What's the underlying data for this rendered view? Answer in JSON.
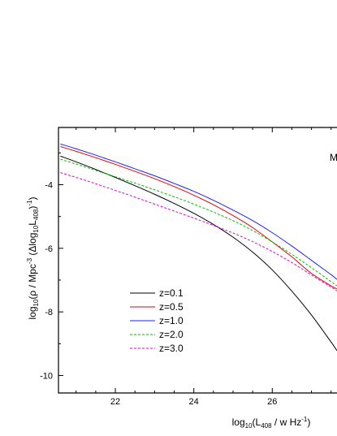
{
  "chart_data": {
    "type": "line",
    "xlabel": {
      "base": "log",
      "sub1": "10",
      "mid": "(L",
      "sub2": "408",
      "tail": " / w Hz",
      "sup": "-1",
      "close": ")"
    },
    "ylabel": {
      "base": "log",
      "sub1": "10",
      "mid1": "(ρ / Mpc",
      "sup1": "-3",
      "mid2": " (Δlog",
      "sub2": "10",
      "mid3": "L",
      "sub3": "408",
      "mid4": ")",
      "sup2": "-1",
      "close": ")"
    },
    "corner_text": "M",
    "xlim": [
      20.55,
      27.65
    ],
    "ylim": [
      -10.55,
      -2.2
    ],
    "xticks": [
      22,
      24,
      26
    ],
    "yticks": [
      -4,
      -6,
      -8,
      -10
    ],
    "grid": false,
    "legend_position": "lower-left",
    "x": [
      20.6,
      21.0,
      21.5,
      22.0,
      22.5,
      23.0,
      23.5,
      24.0,
      24.5,
      25.0,
      25.5,
      26.0,
      26.5,
      27.0,
      27.5,
      27.65
    ],
    "series": [
      {
        "name": "z=0.1",
        "color": "#000000",
        "dash": "solid",
        "values": [
          -3.1,
          -3.28,
          -3.52,
          -3.77,
          -4.03,
          -4.3,
          -4.59,
          -4.9,
          -5.25,
          -5.65,
          -6.12,
          -6.68,
          -7.35,
          -8.1,
          -8.95,
          -9.22
        ]
      },
      {
        "name": "z=0.5",
        "color": "#e8000b",
        "dash": "solid",
        "values": [
          -2.8,
          -2.95,
          -3.15,
          -3.36,
          -3.58,
          -3.81,
          -4.06,
          -4.33,
          -4.63,
          -4.97,
          -5.35,
          -5.8,
          -6.27,
          -6.79,
          -7.18,
          -7.28
        ]
      },
      {
        "name": "z=1.0",
        "color": "#1f1fff",
        "dash": "solid",
        "values": [
          -2.72,
          -2.87,
          -3.07,
          -3.28,
          -3.5,
          -3.72,
          -3.96,
          -4.21,
          -4.49,
          -4.8,
          -5.13,
          -5.51,
          -5.93,
          -6.38,
          -6.83,
          -6.98
        ]
      },
      {
        "name": "z=2.0",
        "color": "#00c000",
        "dash": "dashed",
        "values": [
          -3.2,
          -3.35,
          -3.55,
          -3.75,
          -3.95,
          -4.16,
          -4.38,
          -4.61,
          -4.86,
          -5.13,
          -5.44,
          -5.8,
          -6.19,
          -6.61,
          -7.05,
          -7.18
        ]
      },
      {
        "name": "z=3.0",
        "color": "#e000e0",
        "dash": "dashed",
        "values": [
          -3.62,
          -3.77,
          -3.97,
          -4.18,
          -4.39,
          -4.61,
          -4.83,
          -5.05,
          -5.28,
          -5.52,
          -5.79,
          -6.1,
          -6.45,
          -6.84,
          -7.22,
          -7.34
        ]
      }
    ]
  }
}
